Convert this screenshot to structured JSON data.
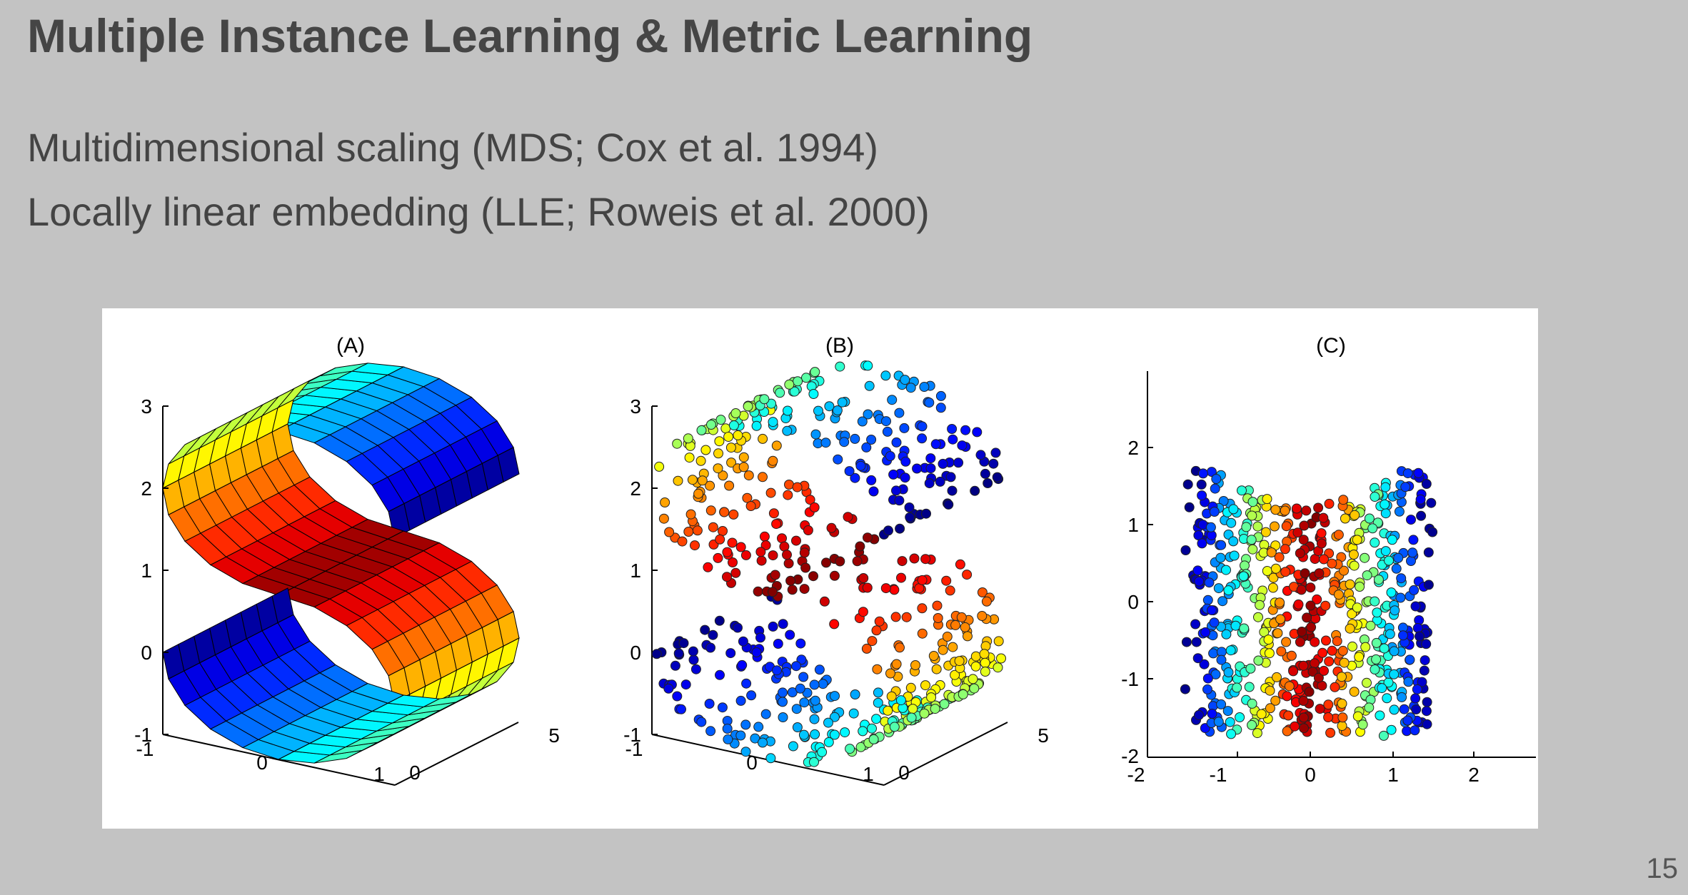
{
  "slide": {
    "title": "Multiple Instance Learning & Metric Learning",
    "bullets": [
      "Multidimensional scaling (MDS; Cox et al. 1994)",
      "Locally linear embedding (LLE; Roweis et al. 2000)"
    ],
    "page_number": "15"
  },
  "figure": {
    "panels": [
      {
        "label": "(A)",
        "z_ticks": [
          "3",
          "2",
          "1",
          "0",
          "-1"
        ],
        "x_ticks": [
          "-1",
          "0",
          "1"
        ],
        "y_ticks": [
          "0",
          "5"
        ]
      },
      {
        "label": "(B)",
        "z_ticks": [
          "3",
          "2",
          "1",
          "0",
          "-1"
        ],
        "x_ticks": [
          "-1",
          "0",
          "1"
        ],
        "y_ticks": [
          "0",
          "5"
        ]
      },
      {
        "label": "(C)",
        "y_ticks": [
          "2",
          "1",
          "0",
          "-1",
          "-2"
        ],
        "x_ticks": [
          "-2",
          "-1",
          "0",
          "1",
          "2"
        ]
      }
    ]
  },
  "chart_data": [
    {
      "type": "surface",
      "title": "(A)",
      "description_axes": "3D S-shaped surface colored by position along the curve",
      "z_ticks": [
        3,
        2,
        1,
        0,
        -1
      ],
      "x_ticks": [
        -1,
        0,
        1
      ],
      "y_ticks": [
        0,
        5
      ],
      "colormap": "jet"
    },
    {
      "type": "scatter",
      "title": "(B)",
      "z_ticks": [
        3,
        2,
        1,
        0,
        -1
      ],
      "x_ticks": [
        -1,
        0,
        1
      ],
      "y_ticks": [
        0,
        5
      ],
      "colormap": "jet"
    },
    {
      "type": "scatter",
      "title": "(C)",
      "xlim": [
        -2,
        2.5
      ],
      "ylim": [
        -2,
        2.5
      ],
      "x_ticks": [
        -2,
        -1,
        0,
        1,
        2
      ],
      "y_ticks": [
        2,
        1,
        0,
        -1,
        -2
      ],
      "colormap": "jet"
    }
  ]
}
